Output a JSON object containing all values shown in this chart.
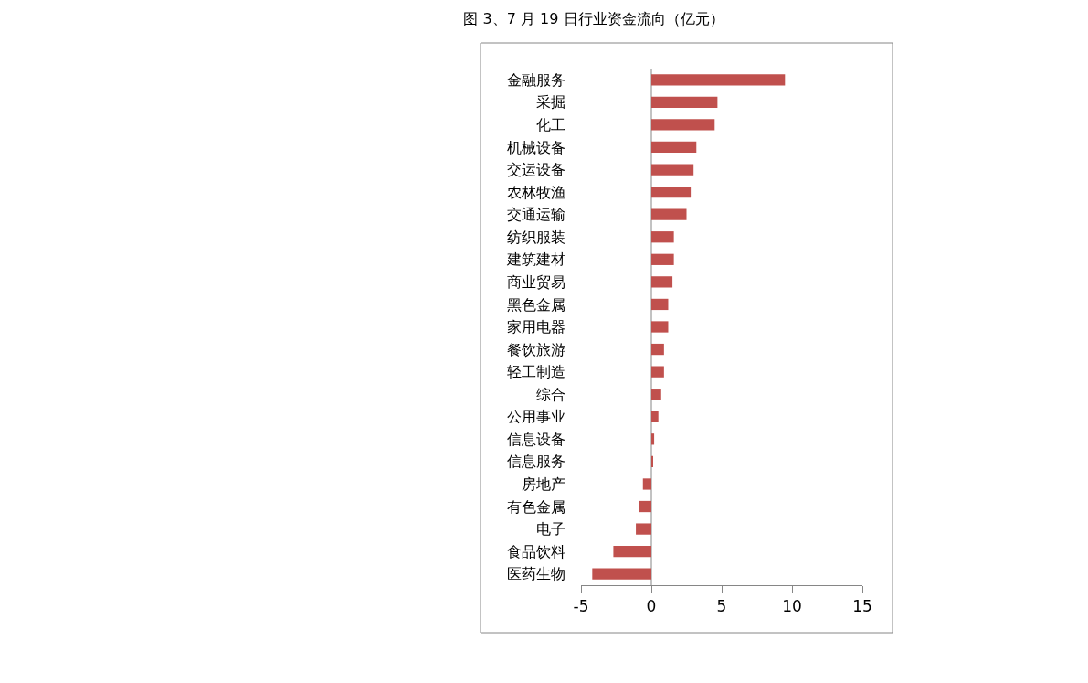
{
  "chart_data": {
    "type": "bar",
    "orientation": "horizontal",
    "title": "图 3、7 月 19 日行业资金流向（亿元）",
    "categories": [
      "金融服务",
      "采掘",
      "化工",
      "机械设备",
      "交运设备",
      "农林牧渔",
      "交通运输",
      "纺织服装",
      "建筑建材",
      "商业贸易",
      "黑色金属",
      "家用电器",
      "餐饮旅游",
      "轻工制造",
      "综合",
      "公用事业",
      "信息设备",
      "信息服务",
      "房地产",
      "有色金属",
      "电子",
      "食品饮料",
      "医药生物"
    ],
    "values": [
      9.5,
      4.7,
      4.5,
      3.2,
      3.0,
      2.8,
      2.5,
      1.6,
      1.6,
      1.5,
      1.2,
      1.2,
      0.9,
      0.9,
      0.7,
      0.5,
      0.2,
      0.1,
      -0.6,
      -0.9,
      -1.1,
      -2.7,
      -4.2
    ],
    "color": "#c0504d",
    "xlim": [
      -5,
      15
    ],
    "xticks": [
      -5,
      0,
      5,
      10,
      15
    ]
  }
}
